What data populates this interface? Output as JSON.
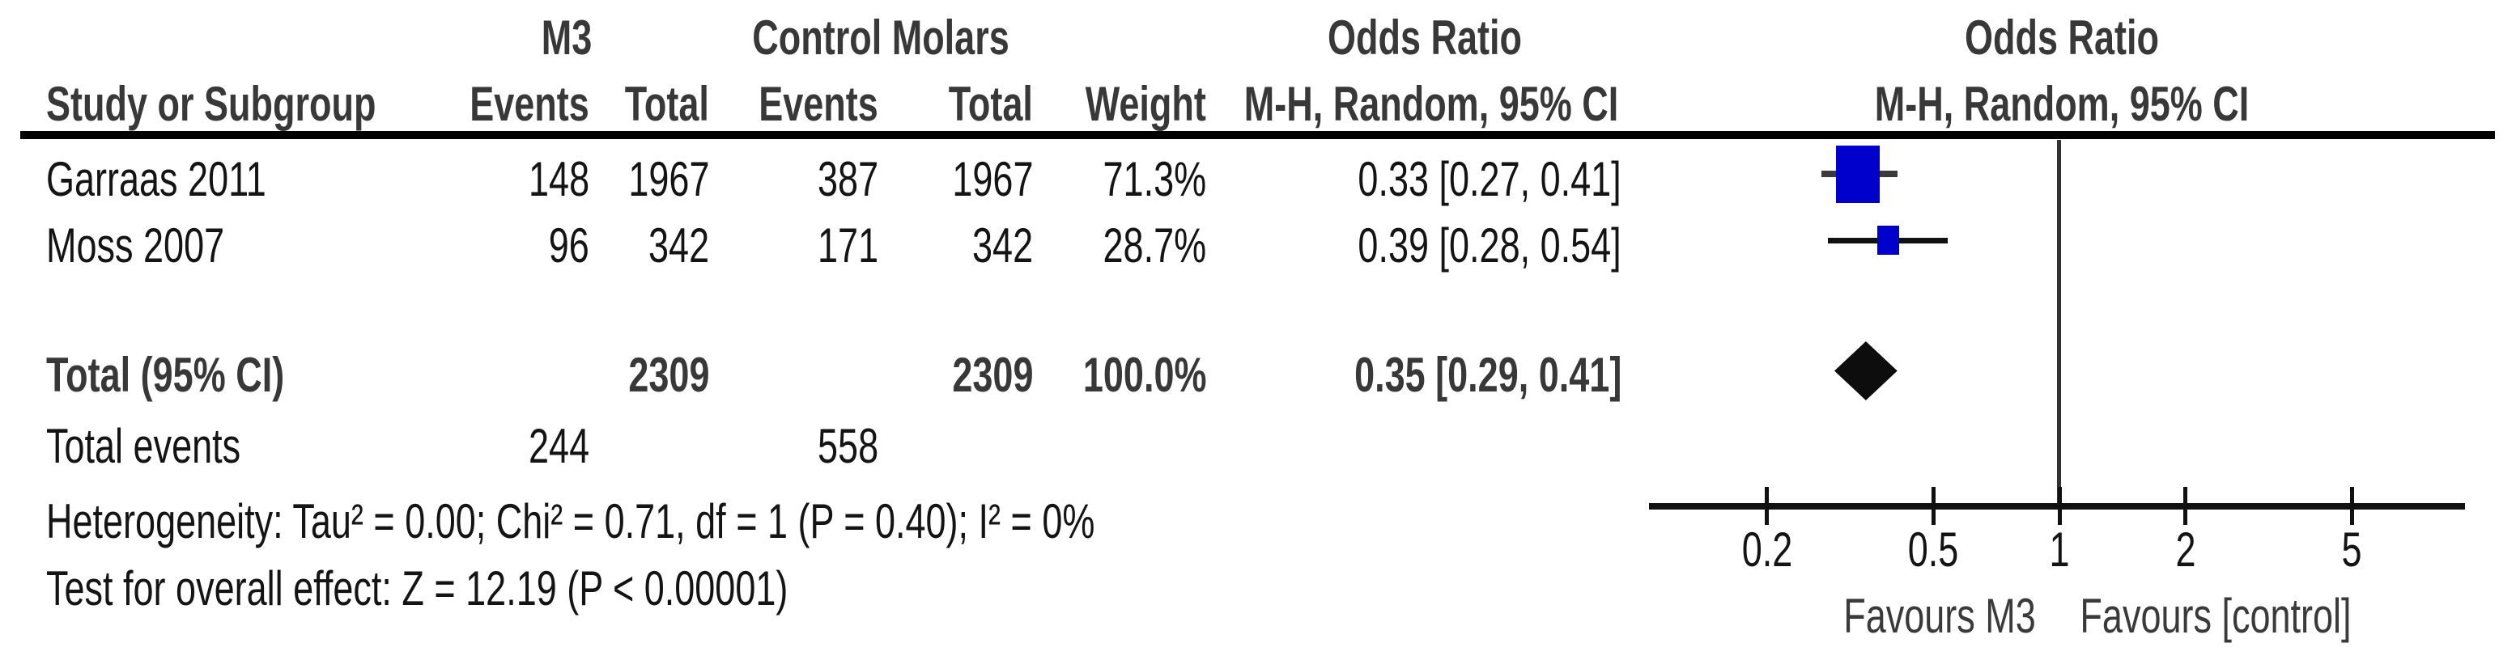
{
  "figure": {
    "kind": "forest-plot"
  },
  "header": {
    "group1": "M3",
    "group2": "Control Molars",
    "or_text_col": {
      "line1": "Odds Ratio",
      "line2": "M-H, Random, 95% CI"
    },
    "or_plot_col": {
      "line1": "Odds Ratio",
      "line2": "M-H, Random, 95% CI"
    },
    "study": "Study or Subgroup",
    "events1": "Events",
    "total1": "Total",
    "events2": "Events",
    "total2": "Total",
    "weight": "Weight"
  },
  "table": {
    "rows": [
      {
        "study": "Garraas 2011",
        "events1": "148",
        "total1": "1967",
        "events2": "387",
        "total2": "1967",
        "weight": "71.3%",
        "or": "0.33 [0.27, 0.41]"
      },
      {
        "study": "Moss 2007",
        "events1": "96",
        "total1": "342",
        "events2": "171",
        "total2": "342",
        "weight": "28.7%",
        "or": "0.39 [0.28, 0.54]"
      }
    ],
    "total_row": {
      "label": "Total (95% CI)",
      "total1": "2309",
      "total2": "2309",
      "weight": "100.0%",
      "or": "0.35 [0.29, 0.41]"
    },
    "total_events_row": {
      "label": "Total events",
      "events1": "244",
      "events2": "558"
    }
  },
  "footnotes": {
    "heterogeneity": "Heterogeneity: Tau² = 0.00; Chi² = 0.71, df = 1 (P = 0.40); I² = 0%",
    "overall_effect": "Test for overall effect: Z = 12.19 (P < 0.00001)"
  },
  "axis": {
    "favours_left": "Favours M3",
    "favours_right": "Favours [control]"
  },
  "colors": {
    "marker_square": "#0000CC",
    "diamond": "#0d0d0d",
    "axis_line": "#111111",
    "null_line": "#333333",
    "text": "#141414",
    "bold_text": "#383838"
  },
  "chart_data": {
    "type": "forest",
    "effect_measure": "Odds Ratio",
    "method": "M-H, Random, 95% CI",
    "x_scale": "log",
    "x_ticks": [
      0.2,
      0.5,
      1,
      2,
      5
    ],
    "null_value": 1,
    "favours": {
      "left": "Favours M3",
      "right": "Favours [control]"
    },
    "studies": [
      {
        "name": "Garraas 2011",
        "m3_events": 148,
        "m3_total": 1967,
        "control_events": 387,
        "control_total": 1967,
        "weight_pct": 71.3,
        "or": 0.33,
        "ci_low": 0.27,
        "ci_high": 0.41
      },
      {
        "name": "Moss 2007",
        "m3_events": 96,
        "m3_total": 342,
        "control_events": 171,
        "control_total": 342,
        "weight_pct": 28.7,
        "or": 0.39,
        "ci_low": 0.28,
        "ci_high": 0.54
      }
    ],
    "total": {
      "label": "Total (95% CI)",
      "m3_total": 2309,
      "control_total": 2309,
      "weight_pct": 100.0,
      "or": 0.35,
      "ci_low": 0.29,
      "ci_high": 0.41
    },
    "total_events": {
      "m3": 244,
      "control": 558
    },
    "heterogeneity": "Tau² = 0.00; Chi² = 0.71, df = 1 (P = 0.40); I² = 0%",
    "overall_effect_test": "Z = 12.19 (P < 0.00001)"
  }
}
